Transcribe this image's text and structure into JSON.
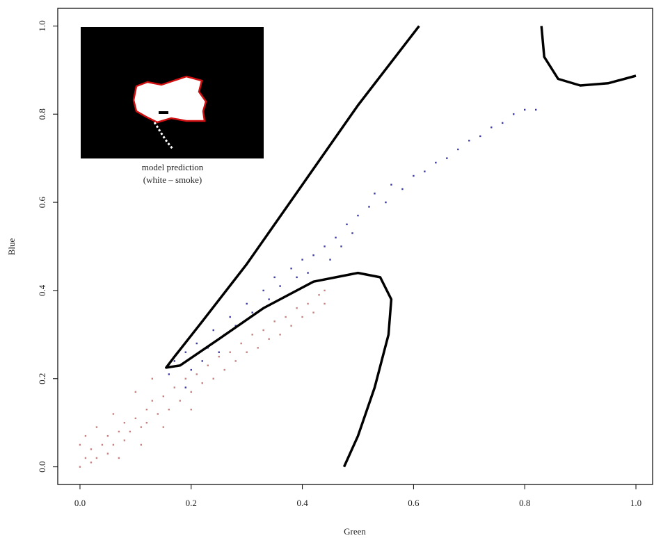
{
  "chart_data": {
    "type": "scatter",
    "xlabel": "Green",
    "ylabel": "Blue",
    "annotation": [
      "model prediction",
      "(white – smoke)"
    ],
    "xlim": [
      -0.04,
      1.03
    ],
    "ylim": [
      -0.04,
      1.04
    ],
    "xticks": [
      {
        "value": 0,
        "label": "0.0"
      },
      {
        "value": 0.2,
        "label": "0.2"
      },
      {
        "value": 0.4,
        "label": "0.4"
      },
      {
        "value": 0.6,
        "label": "0.6"
      },
      {
        "value": 0.8,
        "label": "0.8"
      },
      {
        "value": 1,
        "label": "1.0"
      }
    ],
    "yticks": [
      {
        "value": 0,
        "label": "0.0"
      },
      {
        "value": 0.2,
        "label": "0.2"
      },
      {
        "value": 0.4,
        "label": "0.4"
      },
      {
        "value": 0.6,
        "label": "0.6"
      },
      {
        "value": 0.8,
        "label": "0.8"
      },
      {
        "value": 1,
        "label": "1.0"
      }
    ],
    "series": [
      {
        "color": "#c8817c",
        "x": [
          0,
          0.01,
          0.02,
          0.02,
          0.03,
          0.04,
          0.05,
          0.05,
          0.06,
          0.07,
          0.08,
          0.08,
          0.09,
          0.1,
          0.11,
          0.12,
          0.12,
          0.13,
          0.14,
          0.15,
          0.16,
          0.17,
          0.18,
          0.19,
          0.2,
          0.21,
          0.22,
          0.23,
          0.24,
          0.25,
          0.26,
          0.27,
          0.28,
          0.29,
          0.3,
          0.31,
          0.32,
          0.33,
          0.34,
          0.35,
          0.36,
          0.37,
          0.38,
          0.39,
          0.4,
          0.41,
          0.42,
          0.43,
          0.44,
          0.44,
          0.01,
          0.03,
          0.06,
          0.1,
          0.13,
          0,
          0.07,
          0.11,
          0.15,
          0.2
        ],
        "values": [
          0,
          0.02,
          0.01,
          0.04,
          0.02,
          0.05,
          0.03,
          0.07,
          0.05,
          0.08,
          0.06,
          0.1,
          0.08,
          0.11,
          0.09,
          0.13,
          0.1,
          0.15,
          0.12,
          0.16,
          0.13,
          0.18,
          0.15,
          0.2,
          0.17,
          0.21,
          0.19,
          0.23,
          0.2,
          0.25,
          0.22,
          0.26,
          0.24,
          0.28,
          0.26,
          0.3,
          0.27,
          0.31,
          0.29,
          0.33,
          0.3,
          0.34,
          0.32,
          0.36,
          0.34,
          0.37,
          0.35,
          0.39,
          0.37,
          0.4,
          0.07,
          0.09,
          0.12,
          0.17,
          0.2,
          0.05,
          0.02,
          0.05,
          0.09,
          0.13
        ]
      },
      {
        "color": "#3a3aa8",
        "x": [
          0.16,
          0.17,
          0.19,
          0.2,
          0.21,
          0.23,
          0.24,
          0.26,
          0.27,
          0.28,
          0.3,
          0.31,
          0.33,
          0.34,
          0.35,
          0.36,
          0.38,
          0.39,
          0.4,
          0.41,
          0.42,
          0.44,
          0.45,
          0.46,
          0.47,
          0.48,
          0.49,
          0.5,
          0.52,
          0.53,
          0.55,
          0.56,
          0.58,
          0.6,
          0.62,
          0.64,
          0.66,
          0.68,
          0.7,
          0.72,
          0.74,
          0.76,
          0.78,
          0.8,
          0.82,
          0.19,
          0.22,
          0.25
        ],
        "values": [
          0.21,
          0.24,
          0.26,
          0.22,
          0.28,
          0.27,
          0.31,
          0.3,
          0.34,
          0.32,
          0.37,
          0.35,
          0.4,
          0.38,
          0.43,
          0.41,
          0.45,
          0.43,
          0.47,
          0.44,
          0.48,
          0.5,
          0.47,
          0.52,
          0.5,
          0.55,
          0.53,
          0.57,
          0.59,
          0.62,
          0.6,
          0.64,
          0.63,
          0.66,
          0.67,
          0.69,
          0.7,
          0.72,
          0.74,
          0.75,
          0.77,
          0.78,
          0.8,
          0.81,
          0.81,
          0.18,
          0.24,
          0.26
        ]
      }
    ],
    "curves": [
      {
        "color": "#000000",
        "x": [
          0.61,
          0.5,
          0.4,
          0.3,
          0.22,
          0.17,
          0.155,
          0.18,
          0.25,
          0.33,
          0.42,
          0.5,
          0.54,
          0.56,
          0.555,
          0.53,
          0.5,
          0.475
        ],
        "values": [
          1.0,
          0.82,
          0.64,
          0.46,
          0.33,
          0.25,
          0.225,
          0.23,
          0.29,
          0.36,
          0.42,
          0.44,
          0.43,
          0.38,
          0.3,
          0.18,
          0.07,
          0.0
        ]
      },
      {
        "color": "#000000",
        "x": [
          0.83,
          0.835,
          0.86,
          0.9,
          0.95,
          1.0
        ],
        "values": [
          1.0,
          0.93,
          0.88,
          0.865,
          0.87,
          0.887
        ]
      }
    ]
  }
}
